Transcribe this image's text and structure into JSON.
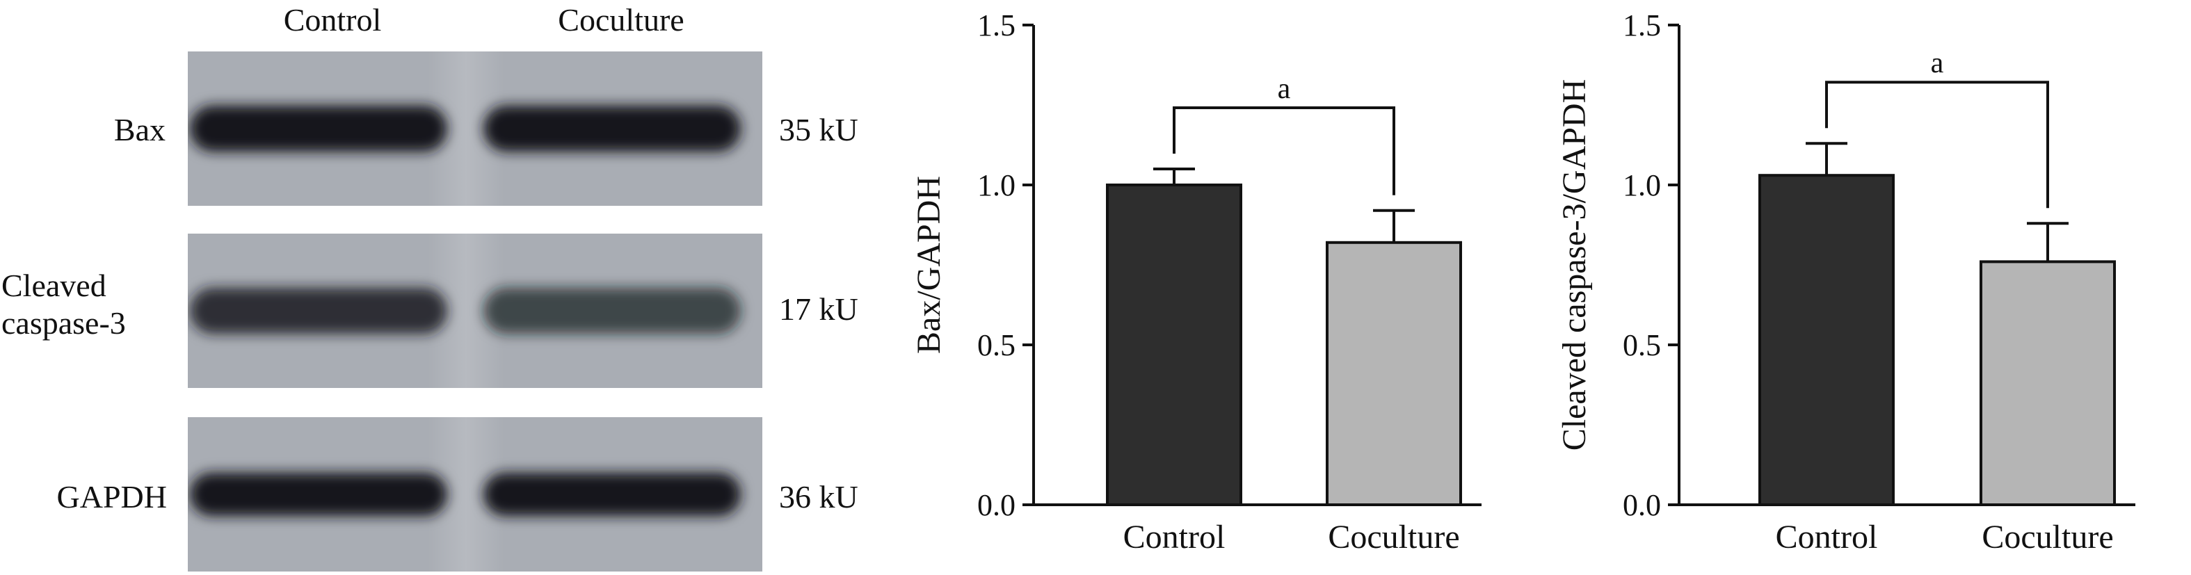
{
  "blot": {
    "lanes": [
      "Control",
      "Coculture"
    ],
    "rows": [
      {
        "label_lines": [
          "Bax"
        ],
        "size": "35 kU",
        "intensities": [
          1.0,
          1.0
        ],
        "band_height": 0.3
      },
      {
        "label_lines": [
          "Cleaved",
          "caspase-3"
        ],
        "size": "17 kU",
        "intensities": [
          0.85,
          0.7
        ],
        "band_height": 0.3
      },
      {
        "label_lines": [
          "GAPDH"
        ],
        "size": "36 kU",
        "intensities": [
          1.0,
          1.0
        ],
        "band_height": 0.28
      }
    ],
    "colors": {
      "panel_background": "#a9adb4",
      "band": "#14171c"
    }
  },
  "chart_data": [
    {
      "type": "bar",
      "categories": [
        "Control",
        "Coculture"
      ],
      "values": [
        1.0,
        0.82
      ],
      "errors": [
        0.05,
        0.1
      ],
      "ylabel": "Bax/GAPDH",
      "ylim": [
        0,
        1.5
      ],
      "yticks": [
        "0.0",
        "0.5",
        "1.0",
        "1.5"
      ],
      "significance": "a",
      "colors": [
        "#2e2e2e",
        "#b5b5b5"
      ]
    },
    {
      "type": "bar",
      "categories": [
        "Control",
        "Coculture"
      ],
      "values": [
        1.03,
        0.76
      ],
      "errors": [
        0.1,
        0.12
      ],
      "ylabel": "Cleaved caspase-3/GAPDH",
      "ylim": [
        0,
        1.5
      ],
      "yticks": [
        "0.0",
        "0.5",
        "1.0",
        "1.5"
      ],
      "significance": "a",
      "colors": [
        "#2e2e2e",
        "#b5b5b5"
      ]
    }
  ]
}
